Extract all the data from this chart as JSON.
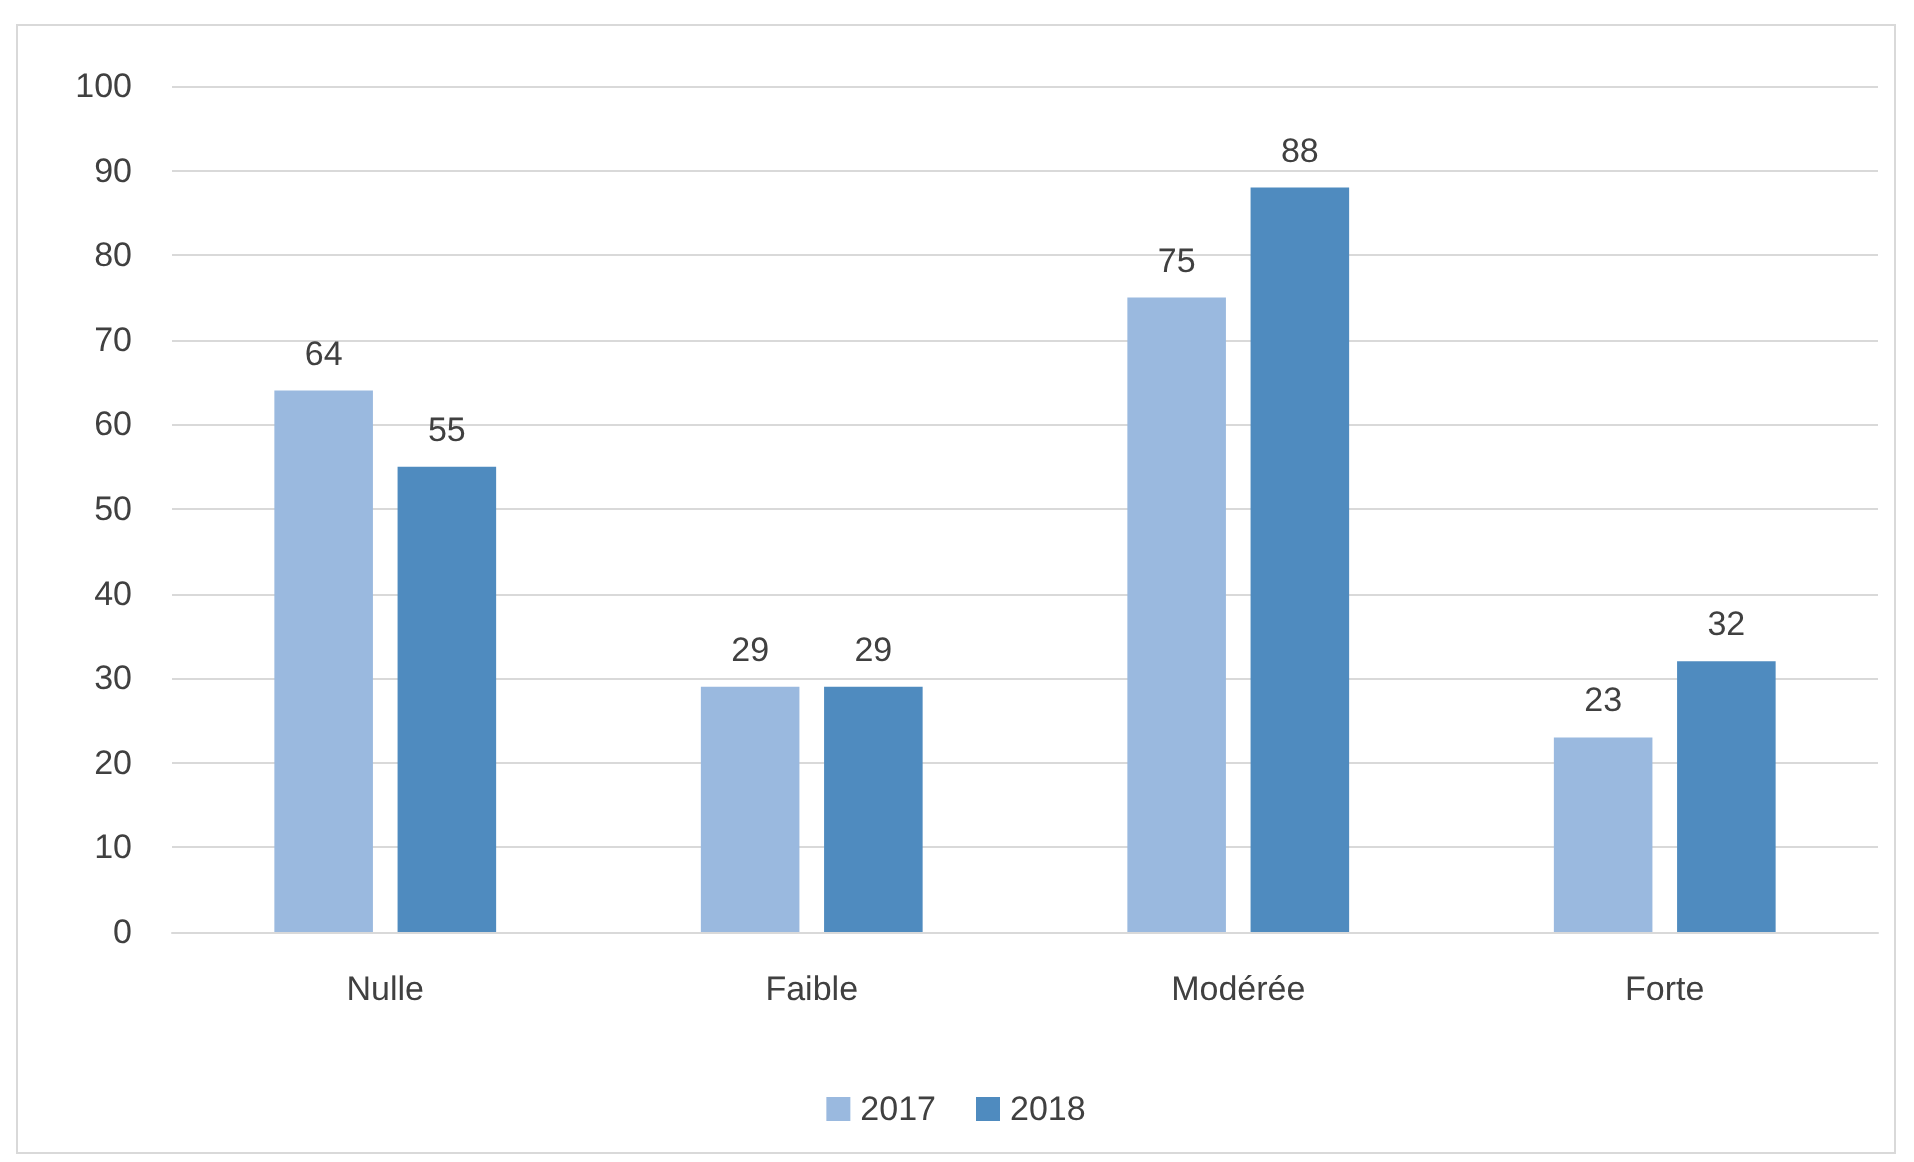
{
  "chart_data": {
    "type": "bar",
    "categories": [
      "Nulle",
      "Faible",
      "Modérée",
      "Forte"
    ],
    "series": [
      {
        "name": "2017",
        "color": "#9ab9df",
        "values": [
          64,
          29,
          75,
          23
        ]
      },
      {
        "name": "2018",
        "color": "#4f8bbf",
        "values": [
          55,
          29,
          88,
          32
        ]
      }
    ],
    "ylim": [
      0,
      100
    ],
    "yticks": [
      0,
      10,
      20,
      30,
      40,
      50,
      60,
      70,
      80,
      90,
      100
    ],
    "grid": "y",
    "legend": "bottom",
    "data_labels": true
  }
}
